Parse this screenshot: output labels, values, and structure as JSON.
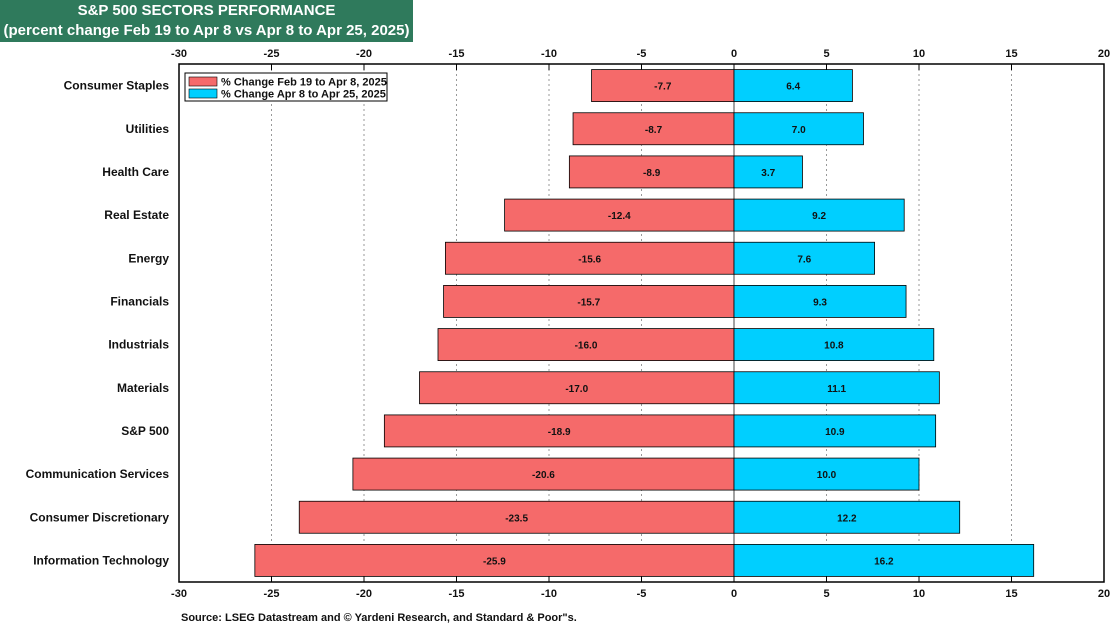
{
  "chart_data": {
    "type": "bar",
    "orientation": "horizontal",
    "title": "S&P 500 SECTORS PERFORMANCE",
    "subtitle": "(percent change Feb 19 to Apr 8 vs Apr 8 to Apr 25, 2025)",
    "categories": [
      "Consumer Staples",
      "Utilities",
      "Health Care",
      "Real Estate",
      "Energy",
      "Financials",
      "Industrials",
      "Materials",
      "S&P 500",
      "Communication Services",
      "Consumer Discretionary",
      "Information Technology"
    ],
    "series": [
      {
        "name": "% Change Feb 19 to Apr 8, 2025",
        "color": "#f56a6a",
        "values": [
          -7.7,
          -8.7,
          -8.9,
          -12.4,
          -15.6,
          -15.7,
          -16.0,
          -17.0,
          -18.9,
          -20.6,
          -23.5,
          -25.9
        ],
        "labels": [
          "-7.7",
          "-8.7",
          "-8.9",
          "-12.4",
          "-15.6",
          "-15.7",
          "-16.0",
          "-17.0",
          "-18.9",
          "-20.6",
          "-23.5",
          "-25.9"
        ]
      },
      {
        "name": "% Change Apr 8 to Apr 25, 2025",
        "color": "#00cfff",
        "values": [
          6.4,
          7.0,
          3.7,
          9.2,
          7.6,
          9.3,
          10.8,
          11.1,
          10.9,
          10.0,
          12.2,
          16.2
        ],
        "labels": [
          "6.4",
          "7.0",
          "3.7",
          "9.2",
          "7.6",
          "9.3",
          "10.8",
          "11.1",
          "10.9",
          "10.0",
          "12.2",
          "16.2"
        ]
      }
    ],
    "xlim": [
      -30,
      20
    ],
    "xticks": [
      "-30",
      "-25",
      "-20",
      "-15",
      "-10",
      "-5",
      "0",
      "5",
      "10",
      "15",
      "20"
    ],
    "grid": true,
    "legend_position": "top-left"
  },
  "header": {
    "title": "S&P 500 SECTORS PERFORMANCE",
    "subtitle": "(percent change Feb 19 to Apr 8 vs Apr 8 to Apr 25, 2025)"
  },
  "footer": {
    "source": "Source: LSEG Datastream and © Yardeni Research, and Standard & Poor\"s."
  }
}
